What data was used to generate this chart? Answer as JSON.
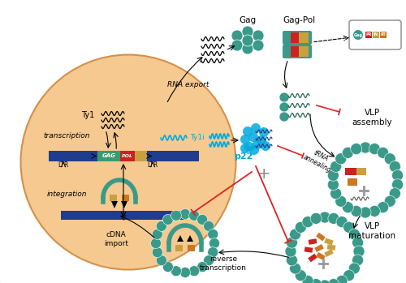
{
  "bg_color": "#ffffff",
  "cell_fill": "#f5c990",
  "cell_border": "#d4904a",
  "teal": "#3a9a8a",
  "dark_blue": "#1e3d8f",
  "red_domain": "#cc2222",
  "orange_domain": "#cc7722",
  "gold_domain": "#c8a040",
  "cyan": "#00aadd",
  "inhibit_color": "#dd2222",
  "dark_green_wavy": "#2a6655",
  "labels": {
    "gag": "Gag",
    "gag_pol": "Gag-Pol",
    "rna_export": "RNA export",
    "ty1": "Ty1",
    "ty1i": "Ty1i",
    "transcription": "transcription",
    "integration": "integration",
    "cdna_import": "cDNA\nimport",
    "vlp_assembly": "VLP\nassembly",
    "vlp_maturation": "VLP\nmaturation",
    "reverse_transcription": "reverse\ntranscription",
    "trna_annealing": "tRNA\nannealing",
    "p22": "p22",
    "ltr": "LTR",
    "gag_label": "GAG",
    "pol_label": "POL"
  }
}
